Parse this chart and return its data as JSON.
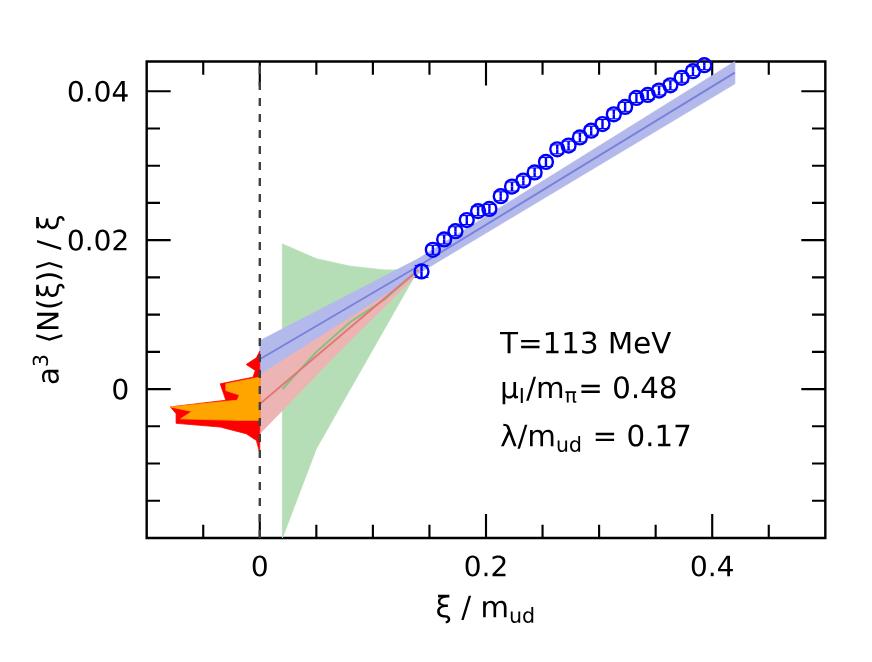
{
  "chart_data": {
    "type": "scatter",
    "xlabel": "ξ / m$_{ud}$",
    "ylabel": "a$^{3}$ ⟨N(ξ)⟩ / ξ",
    "annotations": [
      "T=113 MeV",
      "μ$_{I}$/m$_{π}$= 0.48",
      "λ/m$_{ud}$ = 0.17"
    ],
    "xlim": [
      -0.1,
      0.5
    ],
    "ylim": [
      -0.02,
      0.044
    ],
    "xticks": [
      {
        "value": -0.05,
        "label": null
      },
      0,
      {
        "value": 0.05,
        "label": null
      },
      {
        "value": 0.1,
        "label": null
      },
      {
        "value": 0.15,
        "label": null
      },
      0.2,
      {
        "value": 0.25,
        "label": null
      },
      {
        "value": 0.3,
        "label": null
      },
      {
        "value": 0.35,
        "label": null
      },
      0.4,
      {
        "value": 0.45,
        "label": null
      }
    ],
    "yticks": [
      {
        "value": -0.015,
        "label": null
      },
      {
        "value": -0.01,
        "label": null
      },
      {
        "value": -0.005,
        "label": null
      },
      0,
      {
        "value": 0.005,
        "label": null
      },
      {
        "value": 0.01,
        "label": null
      },
      {
        "value": 0.015,
        "label": null
      },
      0.02,
      {
        "value": 0.025,
        "label": null
      },
      {
        "value": 0.03,
        "label": null
      },
      {
        "value": 0.035,
        "label": null
      },
      0.04
    ],
    "ref_lines": [
      {
        "axis": "x",
        "value": 0,
        "color": "#404040",
        "line_style": "dashed"
      }
    ],
    "series": [
      {
        "type": "area",
        "color": "#ff0000",
        "x": [
          0,
          -0.003,
          -0.012,
          -0.004,
          -0.006,
          -0.035,
          -0.03,
          -0.079,
          -0.074,
          -0.074,
          -0.035,
          -0.012,
          -0.003,
          0
        ],
        "values": [
          0.0051,
          0.0042,
          0.0033,
          0.0025,
          0.0016,
          0.0007,
          -0.0015,
          -0.0024,
          -0.0033,
          -0.0046,
          -0.0051,
          -0.006,
          -0.0069,
          -0.0086
        ]
      },
      {
        "type": "area",
        "color": "#ffa500",
        "x": [
          0,
          -0.03,
          -0.03,
          -0.018,
          -0.02,
          -0.079,
          -0.06,
          -0.07,
          -0.02,
          0
        ],
        "values": [
          0.0016,
          0.0007,
          -0.0002,
          -0.0008,
          -0.0015,
          -0.0024,
          -0.003,
          -0.004,
          -0.0042,
          -0.0042
        ]
      },
      {
        "type": "line",
        "color": "#7cc47c",
        "x": [
          0.02,
          0.05,
          0.08,
          0.11,
          0.14
        ],
        "values": [
          0.0,
          0.005,
          0.009,
          0.012,
          0.016
        ],
        "lower": [
          -0.02,
          -0.008,
          0.0,
          0.008,
          0.016
        ],
        "upper": [
          0.0195,
          0.0175,
          0.0165,
          0.016,
          0.016
        ]
      },
      {
        "type": "line",
        "color": "#e07878",
        "x": [
          0,
          0.07,
          0.14
        ],
        "values": [
          -0.002,
          0.007,
          0.016
        ],
        "lower": [
          -0.006,
          0.005,
          0.0155
        ],
        "upper": [
          0.002,
          0.009,
          0.0165
        ]
      },
      {
        "type": "line",
        "color": "#7880dc",
        "x": [
          0,
          0.14,
          0.42
        ],
        "values": [
          0.004,
          0.0165,
          0.0425
        ],
        "lower": [
          0.002,
          0.0155,
          0.041
        ],
        "upper": [
          0.0065,
          0.0175,
          0.044
        ]
      },
      {
        "color": "#0000ff",
        "marker": "circle",
        "x": [
          0.143,
          0.153,
          0.163,
          0.173,
          0.183,
          0.193,
          0.203,
          0.213,
          0.223,
          0.233,
          0.243,
          0.253,
          0.263,
          0.273,
          0.283,
          0.293,
          0.303,
          0.313,
          0.323,
          0.333,
          0.343,
          0.353,
          0.363,
          0.373,
          0.383,
          0.393
        ],
        "values": [
          0.0158,
          0.0187,
          0.0201,
          0.0212,
          0.0227,
          0.0239,
          0.0242,
          0.0259,
          0.0272,
          0.028,
          0.0291,
          0.0305,
          0.0322,
          0.0327,
          0.0338,
          0.0347,
          0.0356,
          0.0369,
          0.0379,
          0.0391,
          0.0395,
          0.0401,
          0.0408,
          0.0418,
          0.0427,
          0.0435
        ],
        "errors": [
          0.0008,
          0.0006,
          0.0006,
          0.0006,
          0.0006,
          0.0006,
          0.0006,
          0.0006,
          0.0006,
          0.0006,
          0.0006,
          0.0006,
          0.0006,
          0.0006,
          0.0006,
          0.0006,
          0.0006,
          0.0006,
          0.0006,
          0.0006,
          0.0006,
          0.0006,
          0.0006,
          0.0006,
          0.0006,
          0.0006
        ]
      }
    ]
  }
}
